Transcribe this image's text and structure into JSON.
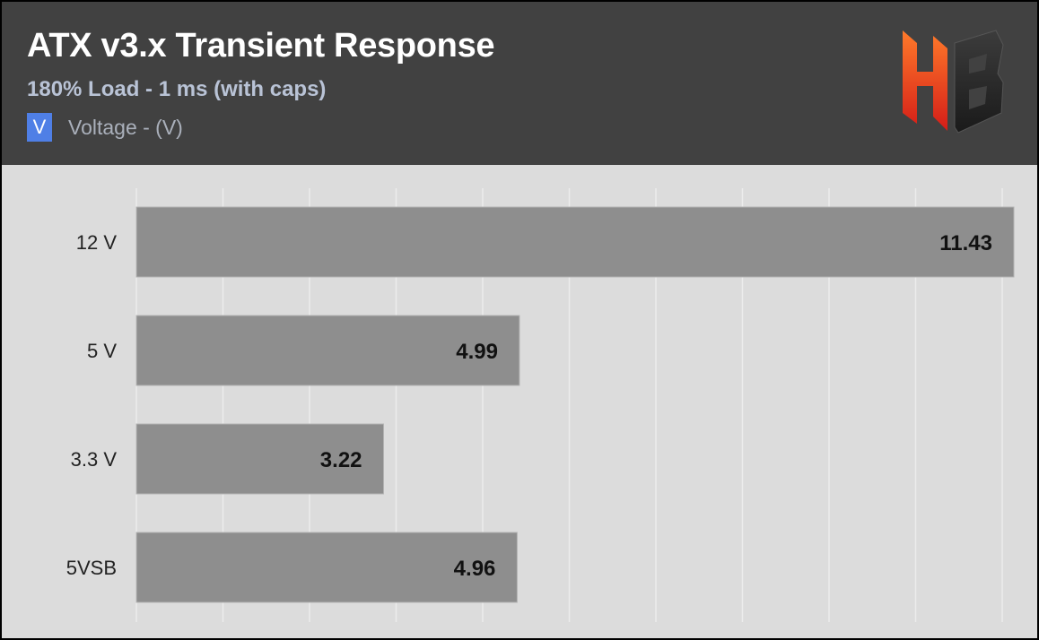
{
  "header": {
    "title": "ATX v3.x Transient Response",
    "subtitle": "180% Load - 1 ms (with caps)"
  },
  "legend": {
    "swatch_text": "V",
    "label": "Voltage - (V)"
  },
  "logo": {
    "icon": "hb-logo",
    "text": "HB"
  },
  "colors": {
    "header_bg": "#414141",
    "plot_bg": "#dcdcdc",
    "bar": "#8e8e8e",
    "gridline": "#ececec",
    "legend_swatch": "#4f7fe6",
    "subtitle": "#b9c3d6"
  },
  "chart_data": {
    "type": "bar",
    "orientation": "horizontal",
    "categories": [
      "12 V",
      "5 V",
      "3.3 V",
      "5VSB"
    ],
    "series": [
      {
        "name": "Voltage - (V)",
        "values": [
          11.43,
          4.99,
          3.22,
          4.96
        ]
      }
    ],
    "xlim": [
      0,
      11.43
    ],
    "grid": true,
    "data_labels": true
  }
}
